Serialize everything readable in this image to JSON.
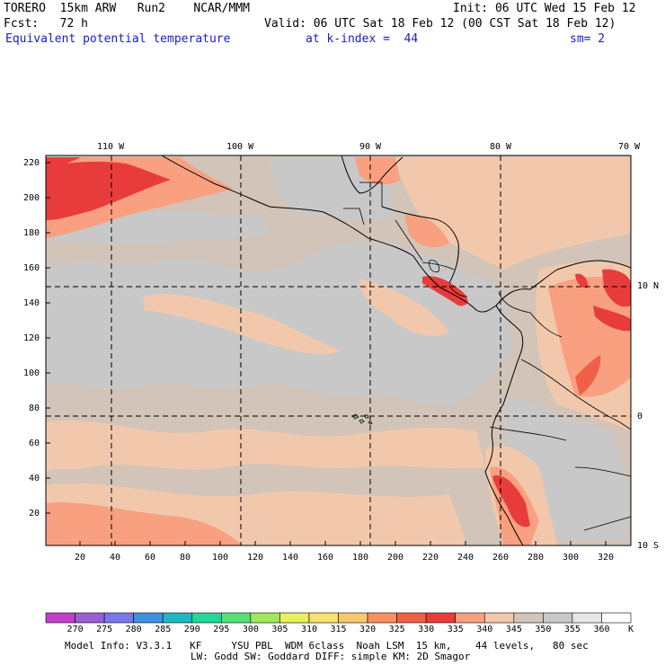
{
  "header": {
    "model": "TORERO  15km ARW   Run2    NCAR/MMM",
    "init": "Init: 06 UTC Wed 15 Feb 12",
    "fcst": "Fcst:   72 h",
    "valid": "Valid: 06 UTC Sat 18 Feb 12 (00 CST Sat 18 Feb 12)",
    "field": "Equivalent potential temperature",
    "level": "at k-index =  44",
    "smooth": "sm= 2"
  },
  "map": {
    "lon_labels": [
      "110 W",
      "100 W",
      "90 W",
      "80 W",
      "70 W"
    ],
    "lat_labels": [
      "10 N",
      "0",
      "10 S"
    ],
    "y_ticks": [
      "220",
      "200",
      "180",
      "160",
      "140",
      "120",
      "100",
      "80",
      "60",
      "40",
      "20"
    ],
    "x_ticks": [
      "20",
      "40",
      "60",
      "80",
      "100",
      "120",
      "140",
      "160",
      "180",
      "200",
      "220",
      "240",
      "260",
      "280",
      "300",
      "320"
    ],
    "colors": {
      "gray_light": "#c8c8c8",
      "gray_mid": "#d2c4b8",
      "peach": "#f2c8ac",
      "salmon": "#f8a080",
      "red_orange": "#f06048",
      "red": "#e83c3c"
    }
  },
  "colorbar": {
    "labels": [
      "270",
      "275",
      "280",
      "285",
      "290",
      "295",
      "300",
      "305",
      "310",
      "315",
      "320",
      "325",
      "330",
      "335",
      "340",
      "345",
      "350",
      "355",
      "360"
    ],
    "unit": "K",
    "colors": [
      "#c040c8",
      "#9860d0",
      "#7878e8",
      "#4090e0",
      "#20b8c0",
      "#20d898",
      "#58e078",
      "#a0e860",
      "#e8f060",
      "#f8e070",
      "#f8c870",
      "#f89060",
      "#f06048",
      "#e83c3c",
      "#f8a080",
      "#f2c8ac",
      "#d2c4b8",
      "#c8c8c8",
      "#e6e6e6",
      "#ffffff"
    ]
  },
  "footer": {
    "line1": "Model Info: V3.3.1   KF     YSU PBL  WDM 6class  Noah LSM  15 km,    44 levels,   80 sec",
    "line2": "LW: Godd SW: Goddard DIFF: simple KM: 2D Smagor"
  }
}
